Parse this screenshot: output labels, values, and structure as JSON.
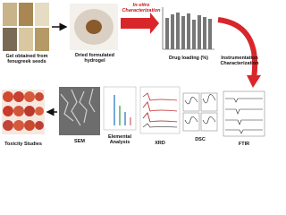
{
  "labels": {
    "gel": "Gel obtained from fenugreek seeds",
    "hydrogel": "Dried formulated hydrogel",
    "invitro": "In-vitro Characterization",
    "drug_loading": "Drug loading (%)",
    "instrumentation": "Instrumentation Characterization",
    "toxicity": "Toxicity Studies",
    "sem": "SEM",
    "elemental": "Elemental Analysis",
    "xrd": "XRD",
    "dsc": "DSC",
    "ftir": "FTIR"
  }
}
